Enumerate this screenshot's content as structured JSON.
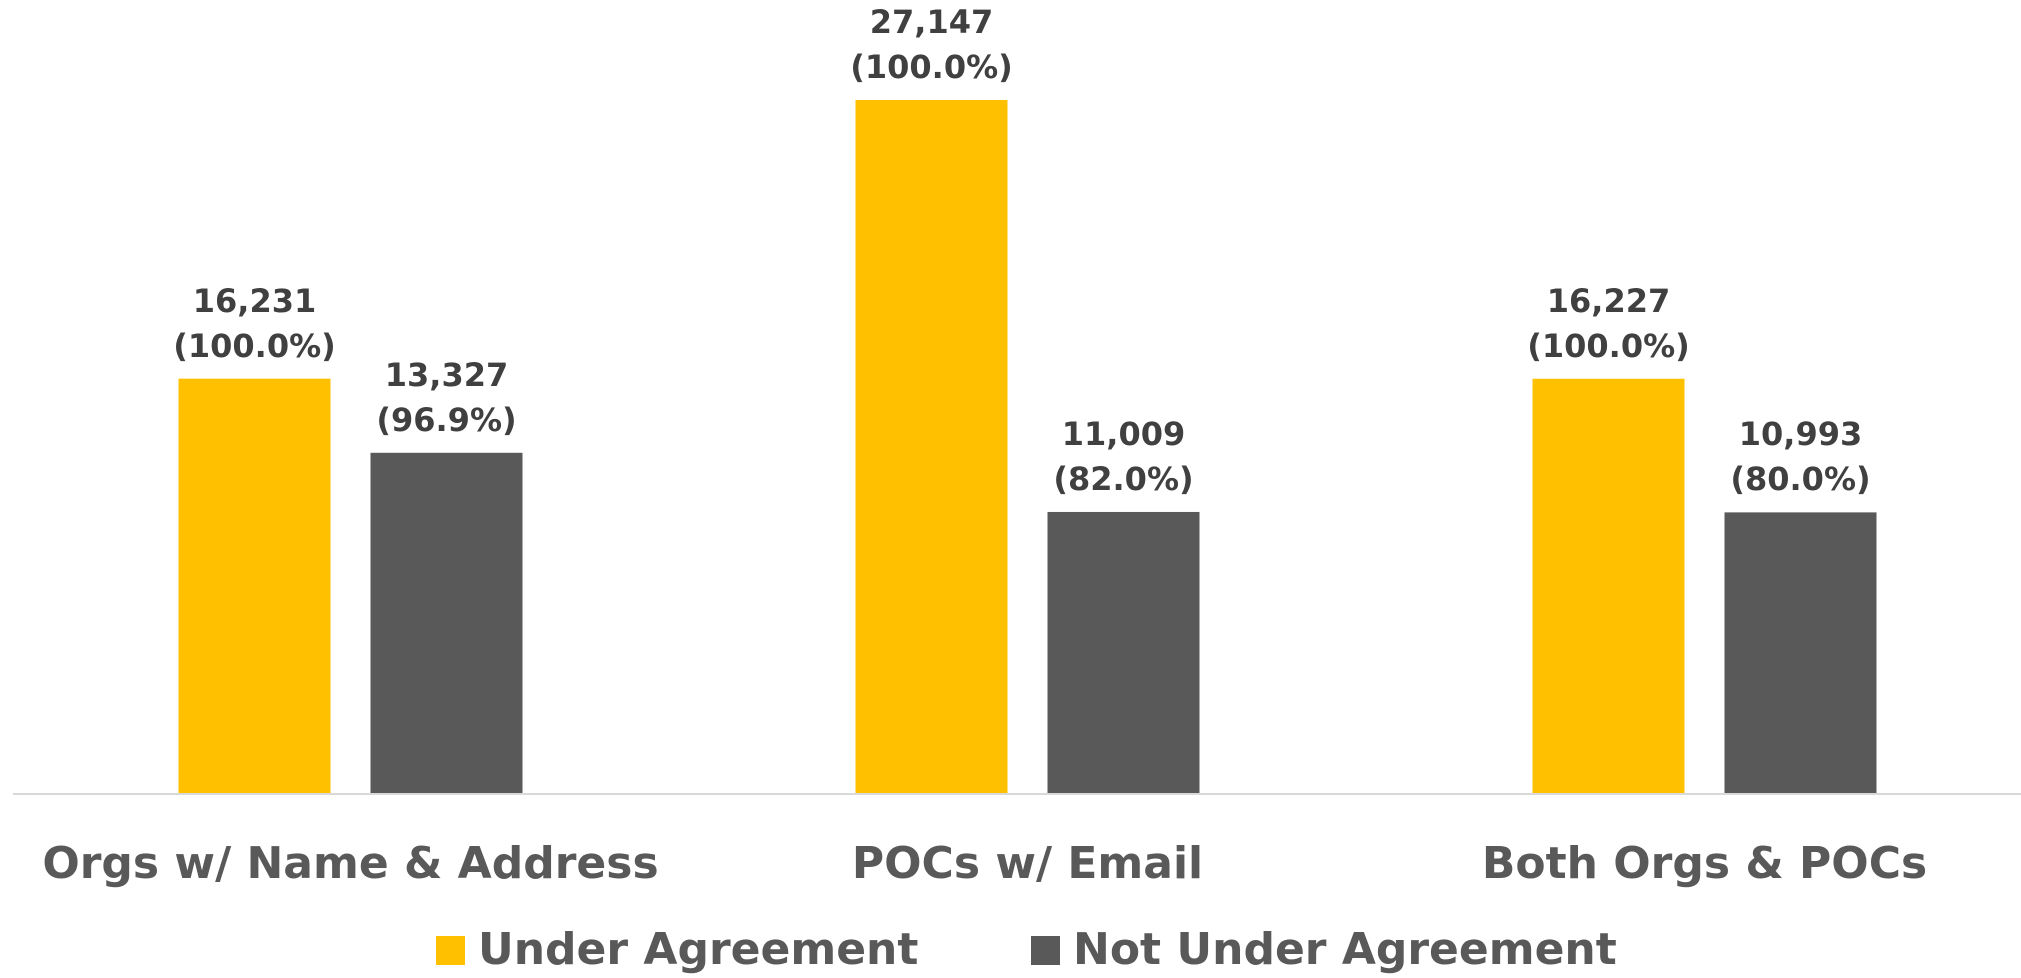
{
  "chart_data": {
    "type": "bar",
    "categories": [
      "Orgs w/ Name & Address",
      "POCs w/ Email",
      "Both Orgs & POCs"
    ],
    "series": [
      {
        "name": "Under Agreement",
        "color": "#ffc000",
        "values": [
          16231,
          27147,
          16227
        ],
        "value_labels": [
          "16,231\n(100.0%)",
          "27,147\n(100.0%)",
          "16,227\n(100.0%)"
        ]
      },
      {
        "name": "Not Under Agreement",
        "color": "#595959",
        "values": [
          13327,
          11009,
          10993
        ],
        "value_labels": [
          "13,327\n(96.9%)",
          "11,009\n(82.0%)",
          "10,993\n(80.0%)"
        ]
      }
    ],
    "legend": "bottom"
  }
}
